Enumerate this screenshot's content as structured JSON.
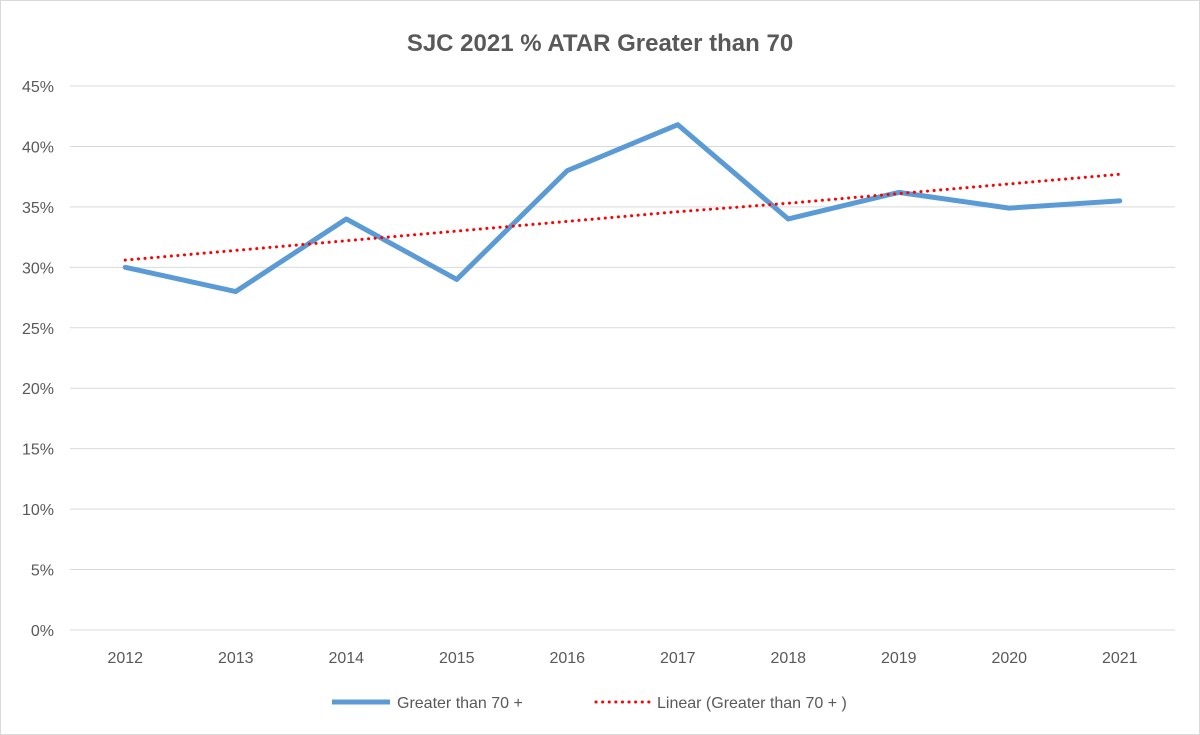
{
  "chart_data": {
    "type": "line",
    "title": "SJC 2021 % ATAR Greater than 70",
    "xlabel": "",
    "ylabel": "",
    "categories": [
      "2012",
      "2013",
      "2014",
      "2015",
      "2016",
      "2017",
      "2018",
      "2019",
      "2020",
      "2021"
    ],
    "ylim": [
      0,
      45
    ],
    "yticks": [
      0,
      5,
      10,
      15,
      20,
      25,
      30,
      35,
      40,
      45
    ],
    "ytick_labels": [
      "0%",
      "5%",
      "10%",
      "15%",
      "20%",
      "25%",
      "30%",
      "35%",
      "40%",
      "45%"
    ],
    "grid": true,
    "legend_position": "bottom",
    "series": [
      {
        "name": "Greater than 70 +",
        "values": [
          30.0,
          28.0,
          34.0,
          29.0,
          38.0,
          41.8,
          34.0,
          36.2,
          34.9,
          35.5
        ],
        "color": "#5b9bd5",
        "style": "solid"
      },
      {
        "name": "Linear (Greater than 70 + )",
        "values": [
          30.6,
          31.4,
          32.2,
          33.0,
          33.8,
          34.6,
          35.3,
          36.1,
          36.9,
          37.7
        ],
        "color": "#ff0000",
        "style": "dotted"
      }
    ]
  }
}
